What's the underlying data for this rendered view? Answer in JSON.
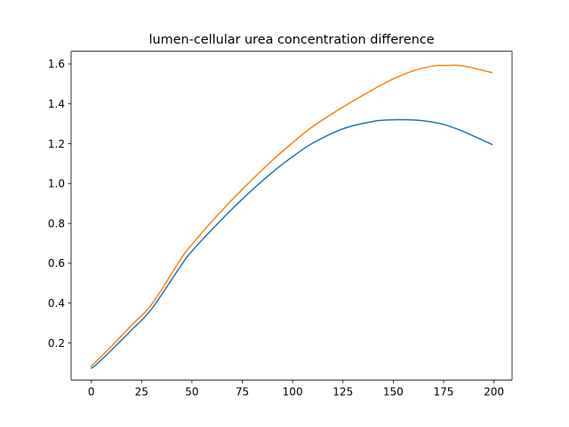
{
  "chart_data": {
    "type": "line",
    "title": "lumen-cellular urea concentration difference",
    "xlabel": "",
    "ylabel": "",
    "xlim": [
      -10,
      209
    ],
    "ylim": [
      0.014,
      1.664
    ],
    "x_ticks": [
      0,
      25,
      50,
      75,
      100,
      125,
      150,
      175,
      200
    ],
    "x_tick_labels": [
      "0",
      "25",
      "50",
      "75",
      "100",
      "125",
      "150",
      "175",
      "200"
    ],
    "y_ticks": [
      0.2,
      0.4,
      0.6,
      0.8,
      1.0,
      1.2,
      1.4,
      1.6
    ],
    "y_tick_labels": [
      "0.2",
      "0.4",
      "0.6",
      "0.8",
      "1.0",
      "1.2",
      "1.4",
      "1.6"
    ],
    "grid": false,
    "legend": "none",
    "series": [
      {
        "color": "#1f77b4",
        "x": [
          0,
          2,
          10,
          20,
          30,
          45,
          50,
          60,
          75,
          90,
          100,
          110,
          125,
          140,
          150,
          158,
          165,
          175,
          185,
          199
        ],
        "y": [
          0.074,
          0.087,
          0.164,
          0.265,
          0.371,
          0.595,
          0.661,
          0.77,
          0.922,
          1.057,
          1.135,
          1.203,
          1.275,
          1.312,
          1.32,
          1.32,
          1.315,
          1.297,
          1.26,
          1.196
        ]
      },
      {
        "color": "#ff7f0e",
        "x": [
          0,
          2,
          10,
          20,
          30,
          45,
          50,
          60,
          75,
          90,
          100,
          110,
          125,
          140,
          150,
          160,
          170,
          178,
          185,
          199
        ],
        "y": [
          0.084,
          0.103,
          0.183,
          0.289,
          0.394,
          0.629,
          0.694,
          0.811,
          0.971,
          1.117,
          1.205,
          1.286,
          1.384,
          1.472,
          1.525,
          1.566,
          1.59,
          1.593,
          1.59,
          1.557
        ]
      }
    ]
  }
}
